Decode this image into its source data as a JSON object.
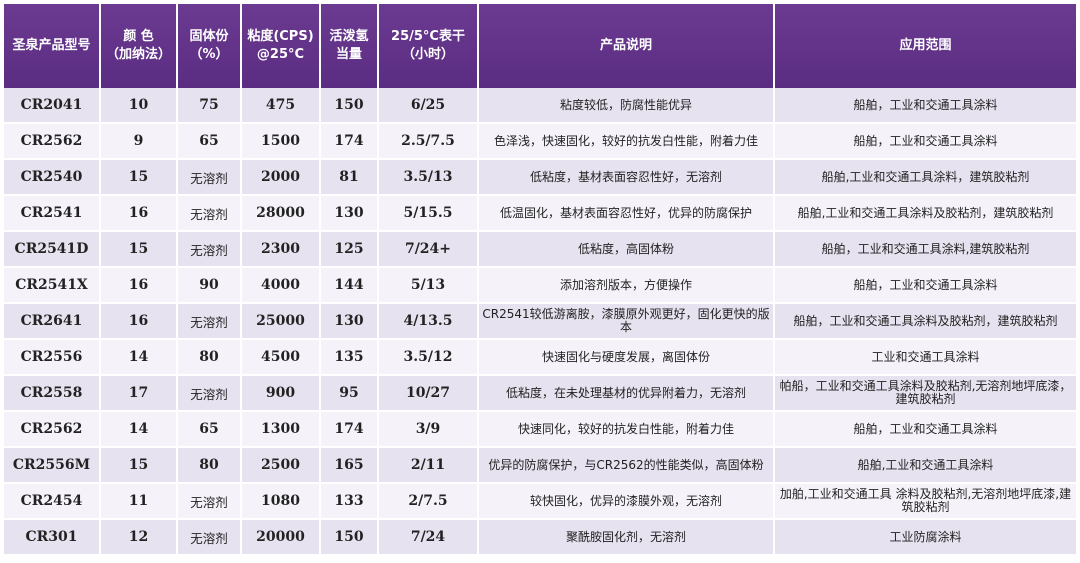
{
  "headers": [
    "圣泉产品型号",
    "颜 色\n（加纳法）",
    "固体份\n（%）",
    "粘度(CPS)\n@25°C",
    "活泼氢\n当量",
    "25/5°C表干\n（小时）",
    "产品说明",
    "应用范围"
  ],
  "rows": [
    {
      "model": "CR2041",
      "color": "10",
      "solid": "75",
      "viscosity": "475",
      "h_eq": "150",
      "dry": "6/25",
      "desc": "粘度较低，防腐性能优异",
      "usage": "船舶，工业和交通工具涂料"
    },
    {
      "model": "CR2562",
      "color": "9",
      "solid": "65",
      "viscosity": "1500",
      "h_eq": "174",
      "dry": "2.5/7.5",
      "desc": "色泽浅，快速固化，较好的抗发白性能，附着力佳",
      "usage": "船舶，工业和交通工具涂料"
    },
    {
      "model": "CR2540",
      "color": "15",
      "solid": "无溶剂",
      "viscosity": "2000",
      "h_eq": "81",
      "dry": "3.5/13",
      "desc": "低粘度，基材表面容忍性好，无溶剂",
      "usage": "船舶,工业和交通工具涂料，建筑胶粘剂"
    },
    {
      "model": "CR2541",
      "color": "16",
      "solid": "无溶剂",
      "viscosity": "28000",
      "h_eq": "130",
      "dry": "5/15.5",
      "desc": "低温固化，基材表面容忍性好，优异的防腐保护",
      "usage": "船舶,工业和交通工具涂料及胶粘剂，建筑胶粘剂"
    },
    {
      "model": "CR2541D",
      "color": "15",
      "solid": "无溶剂",
      "viscosity": "2300",
      "h_eq": "125",
      "dry": "7/24+",
      "desc": "低粘度，高固体粉",
      "usage": "船舶，工业和交通工具涂料,建筑胶粘剂"
    },
    {
      "model": "CR2541X",
      "color": "16",
      "solid": "90",
      "viscosity": "4000",
      "h_eq": "144",
      "dry": "5/13",
      "desc": "添加溶剂版本，方便操作",
      "usage": "船舶，工业和交通工具涂料"
    },
    {
      "model": "CR2641",
      "color": "16",
      "solid": "无溶剂",
      "viscosity": "25000",
      "h_eq": "130",
      "dry": "4/13.5",
      "desc": "CR2541较低游离胺，漆膜原外观更好，固化更快的版本",
      "usage": "船舶，工业和交通工具涂料及胶粘剂，建筑胶粘剂"
    },
    {
      "model": "CR2556",
      "color": "14",
      "solid": "80",
      "viscosity": "4500",
      "h_eq": "135",
      "dry": "3.5/12",
      "desc": "快速固化与硬度发展，离固体份",
      "usage": "工业和交通工具涂料"
    },
    {
      "model": "CR2558",
      "color": "17",
      "solid": "无溶剂",
      "viscosity": "900",
      "h_eq": "95",
      "dry": "10/27",
      "desc": "低粘度，在未处理基材的优异附着力，无溶剂",
      "usage": "帕船，工业和交通工具涂料及胶粘剂,无溶剂地坪底漆，建筑胶粘剂"
    },
    {
      "model": "CR2562",
      "color": "14",
      "solid": "65",
      "viscosity": "1300",
      "h_eq": "174",
      "dry": "3/9",
      "desc": "快速同化，较好的抗发白性能，附着力佳",
      "usage": "船舶，工业和交通工具涂料"
    },
    {
      "model": "CR2556M",
      "color": "15",
      "solid": "80",
      "viscosity": "2500",
      "h_eq": "165",
      "dry": "2/11",
      "desc": "优异的防腐保护，与CR2562的性能类似，高固体粉",
      "usage": "船舶,工业和交通工具涂料"
    },
    {
      "model": "CR2454",
      "color": "11",
      "solid": "无溶剂",
      "viscosity": "1080",
      "h_eq": "133",
      "dry": "2/7.5",
      "desc": "较快固化，优异的漆膜外观，无溶剂",
      "usage": "加舶,工业和交通工具 涂料及胶粘剂,无溶剂地坪底漆,建筑胶粘剂"
    },
    {
      "model": "CR301",
      "color": "12",
      "solid": "无溶剂",
      "viscosity": "20000",
      "h_eq": "150",
      "dry": "7/24",
      "desc": "聚酰胺固化剂，无溶剂",
      "usage": "工业防腐涂料"
    }
  ]
}
